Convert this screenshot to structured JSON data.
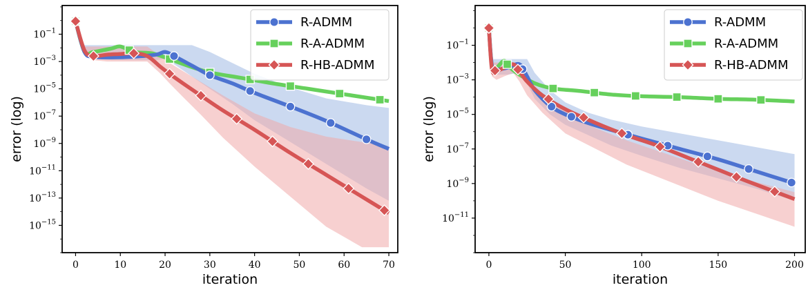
{
  "colors": {
    "R-ADMM": "#4c72d0",
    "R-A-ADMM": "#66d05c",
    "R-HB-ADMM": "#d65555",
    "band_blue": "#a9bfe6",
    "band_red": "#f0aaaa"
  },
  "chart_data": [
    {
      "type": "line",
      "xlabel": "iteration",
      "ylabel": "error (log)",
      "yscale": "log",
      "xlim": [
        -3,
        72
      ],
      "ylim_exp": [
        -17,
        1.1
      ],
      "xticks": [
        0,
        10,
        20,
        30,
        40,
        50,
        60,
        70
      ],
      "yticks_exp": [
        -1,
        -3,
        -5,
        -7,
        -9,
        -11,
        -13,
        -15
      ],
      "legend_position": "top-right",
      "series": [
        {
          "name": "R-ADMM",
          "marker": "circle",
          "x": [
            0,
            2,
            4,
            8,
            13,
            18,
            20,
            22,
            26,
            30,
            35,
            40,
            48,
            56,
            65,
            70
          ],
          "log_y": [
            -0.05,
            -2.3,
            -2.65,
            -2.7,
            -2.65,
            -2.5,
            -2.3,
            -2.6,
            -3.3,
            -4.0,
            -4.6,
            -5.3,
            -6.3,
            -7.35,
            -8.7,
            -9.4
          ],
          "marker_x": [
            0,
            22,
            30,
            39,
            48,
            57,
            65
          ],
          "band_upper_log": [
            -0.05,
            -1.8,
            -1.8,
            -1.8,
            -1.8,
            -1.8,
            -1.8,
            -1.8,
            -1.8,
            -2.3,
            -3.1,
            -3.9,
            -4.9,
            -5.7,
            -6.2,
            -6.4
          ],
          "band_lower_log": [
            -0.05,
            -2.4,
            -2.8,
            -2.9,
            -2.9,
            -2.9,
            -2.8,
            -3.2,
            -4.1,
            -5.0,
            -6.1,
            -7.3,
            -8.9,
            -10.5,
            -12.3,
            -13.2
          ]
        },
        {
          "name": "R-A-ADMM",
          "marker": "square",
          "x": [
            0,
            2,
            4,
            8,
            10,
            13,
            17,
            20,
            25,
            30,
            37,
            44,
            52,
            60,
            66,
            70
          ],
          "log_y": [
            -0.05,
            -2.3,
            -2.3,
            -2.05,
            -1.9,
            -2.3,
            -2.4,
            -2.7,
            -3.3,
            -3.8,
            -4.2,
            -4.6,
            -5.0,
            -5.4,
            -5.7,
            -5.9
          ],
          "marker_x": [
            0,
            12,
            21,
            30,
            39,
            48,
            59,
            68
          ]
        },
        {
          "name": "R-HB-ADMM",
          "marker": "diamond",
          "x": [
            0,
            2,
            4,
            7,
            10,
            13,
            16,
            19,
            21,
            24,
            28,
            33,
            40,
            48,
            56,
            64,
            70
          ],
          "log_y": [
            -0.05,
            -2.2,
            -2.6,
            -2.5,
            -2.45,
            -2.4,
            -2.6,
            -3.4,
            -3.9,
            -4.6,
            -5.5,
            -6.6,
            -8.0,
            -9.7,
            -11.3,
            -12.9,
            -14.1
          ],
          "marker_x": [
            0,
            4,
            13,
            21,
            28,
            36,
            44,
            52,
            61,
            69
          ],
          "band_upper_log": [
            -0.05,
            -1.9,
            -1.9,
            -1.9,
            -1.9,
            -1.9,
            -1.9,
            -2.6,
            -3.1,
            -3.7,
            -4.5,
            -5.5,
            -6.8,
            -7.8,
            -8.5,
            -8.9,
            -9.2
          ],
          "band_lower_log": [
            -0.05,
            -2.5,
            -2.9,
            -3.0,
            -3.0,
            -3.0,
            -3.0,
            -3.9,
            -4.6,
            -5.6,
            -6.9,
            -8.6,
            -10.7,
            -12.9,
            -15.1,
            -16.6,
            -16.6
          ]
        }
      ]
    },
    {
      "type": "line",
      "xlabel": "iteration",
      "ylabel": "error (log)",
      "yscale": "log",
      "xlim": [
        -9,
        207
      ],
      "ylim_exp": [
        -13,
        1.3
      ],
      "xticks": [
        0,
        50,
        100,
        150,
        200
      ],
      "yticks_exp": [
        -1,
        -3,
        -5,
        -7,
        -9,
        -11
      ],
      "legend_position": "top-right",
      "series": [
        {
          "name": "R-ADMM",
          "marker": "circle",
          "x": [
            0,
            2,
            5,
            12,
            20,
            25,
            30,
            40,
            50,
            65,
            80,
            100,
            125,
            150,
            175,
            200
          ],
          "log_y": [
            0,
            -2.2,
            -2.4,
            -2.3,
            -2.1,
            -2.8,
            -3.6,
            -4.5,
            -5.0,
            -5.5,
            -5.9,
            -6.4,
            -7.0,
            -7.6,
            -8.3,
            -9.0
          ],
          "marker_x": [
            0,
            22,
            41,
            54,
            91,
            117,
            143,
            170,
            198
          ],
          "band_upper_log": [
            0,
            -1.8,
            -1.8,
            -1.8,
            -1.8,
            -1.8,
            -2.6,
            -3.6,
            -4.3,
            -4.9,
            -5.3,
            -5.7,
            -6.1,
            -6.5,
            -6.9,
            -7.3
          ],
          "band_lower_log": [
            0,
            -2.5,
            -2.7,
            -2.7,
            -2.6,
            -3.2,
            -4.1,
            -5.0,
            -5.6,
            -6.2,
            -6.8,
            -7.4,
            -8.1,
            -8.7,
            -9.3,
            -10.0
          ]
        },
        {
          "name": "R-A-ADMM",
          "marker": "square",
          "x": [
            0,
            2,
            5,
            10,
            14,
            20,
            30,
            42,
            60,
            80,
            100,
            125,
            150,
            175,
            200
          ],
          "log_y": [
            0,
            -2.2,
            -2.3,
            -1.9,
            -2.3,
            -2.7,
            -3.2,
            -3.5,
            -3.65,
            -3.85,
            -3.95,
            -4.0,
            -4.1,
            -4.15,
            -4.25
          ],
          "marker_x": [
            0,
            12,
            42,
            69,
            96,
            123,
            150,
            178
          ]
        },
        {
          "name": "R-HB-ADMM",
          "marker": "diamond",
          "x": [
            0,
            2,
            5,
            10,
            16,
            20,
            25,
            35,
            50,
            70,
            90,
            110,
            130,
            150,
            170,
            200
          ],
          "log_y": [
            0,
            -2.4,
            -2.5,
            -2.3,
            -2.1,
            -2.5,
            -3.1,
            -3.9,
            -4.7,
            -5.5,
            -6.2,
            -6.8,
            -7.5,
            -8.2,
            -8.9,
            -9.9
          ],
          "marker_x": [
            0,
            4,
            19,
            39,
            62,
            87,
            112,
            137,
            162,
            187
          ],
          "band_upper_log": [
            0,
            -2.0,
            -2.0,
            -2.0,
            -2.0,
            -2.2,
            -2.9,
            -3.8,
            -4.8,
            -5.8,
            -6.5,
            -7.1,
            -7.7,
            -8.3,
            -8.8,
            -9.5
          ],
          "band_lower_log": [
            0,
            -2.8,
            -3.0,
            -2.8,
            -2.6,
            -3.1,
            -3.9,
            -4.9,
            -6.1,
            -7.0,
            -7.9,
            -8.6,
            -9.3,
            -10.0,
            -10.6,
            -11.5
          ]
        }
      ]
    }
  ]
}
